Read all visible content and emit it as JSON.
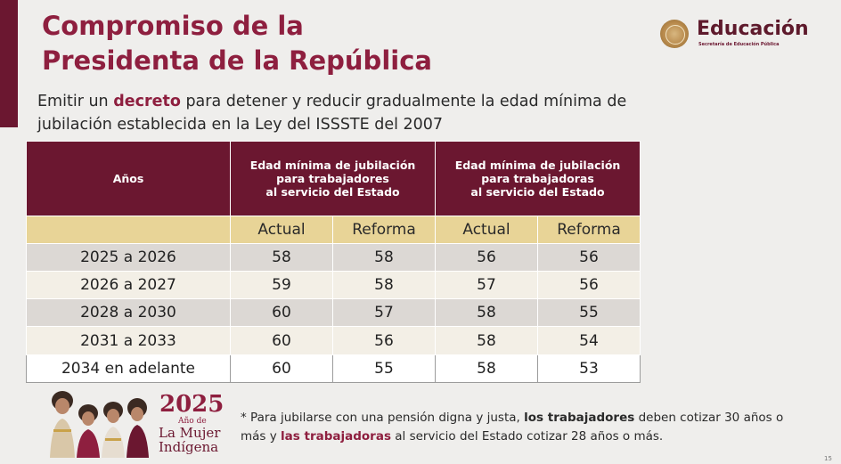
{
  "title": {
    "line1": "Compromiso de la",
    "line2": "Presidenta de la República"
  },
  "logo": {
    "name": "Educación",
    "sub": "Secretaría de Educación Pública",
    "icon": "seal-icon"
  },
  "subtitle": {
    "before": "Emitir un ",
    "highlight": "decreto",
    "after": " para detener y reducir gradualmente la edad mínima de jubilación establecida en la Ley del ISSSTE del 2007"
  },
  "table": {
    "col_years": "Años",
    "group1": [
      "Edad mínima de jubilación",
      "para trabajadores",
      "al servicio del Estado"
    ],
    "group2": [
      "Edad mínima de jubilación",
      "para trabajadoras",
      "al servicio del Estado"
    ],
    "sub": [
      "Actual",
      "Reforma",
      "Actual",
      "Reforma"
    ],
    "rows": [
      [
        "2025 a 2026",
        "58",
        "58",
        "56",
        "56"
      ],
      [
        "2026 a 2027",
        "59",
        "58",
        "57",
        "56"
      ],
      [
        "2028 a 2030",
        "60",
        "57",
        "58",
        "55"
      ],
      [
        "2031 a 2033",
        "60",
        "56",
        "58",
        "54"
      ],
      [
        "2034 en adelante",
        "60",
        "55",
        "58",
        "53"
      ]
    ]
  },
  "badge": {
    "year": "2025",
    "ano": "Año de",
    "line1": "La Mujer",
    "line2": "Indígena",
    "icon": "indigenous-women-illustration"
  },
  "note": {
    "p1": "* Para jubilarse con una pensión digna y justa, ",
    "b1": "los trabajadores",
    "p2": " deben cotizar 30 años o más y ",
    "b2": "las trabajadoras",
    "p3": " al servicio del Estado cotizar 28 años o más."
  },
  "page_number": "15",
  "colors": {
    "maroon": "#6b1730",
    "title": "#8e1f3f",
    "gold": "#e8d497"
  }
}
